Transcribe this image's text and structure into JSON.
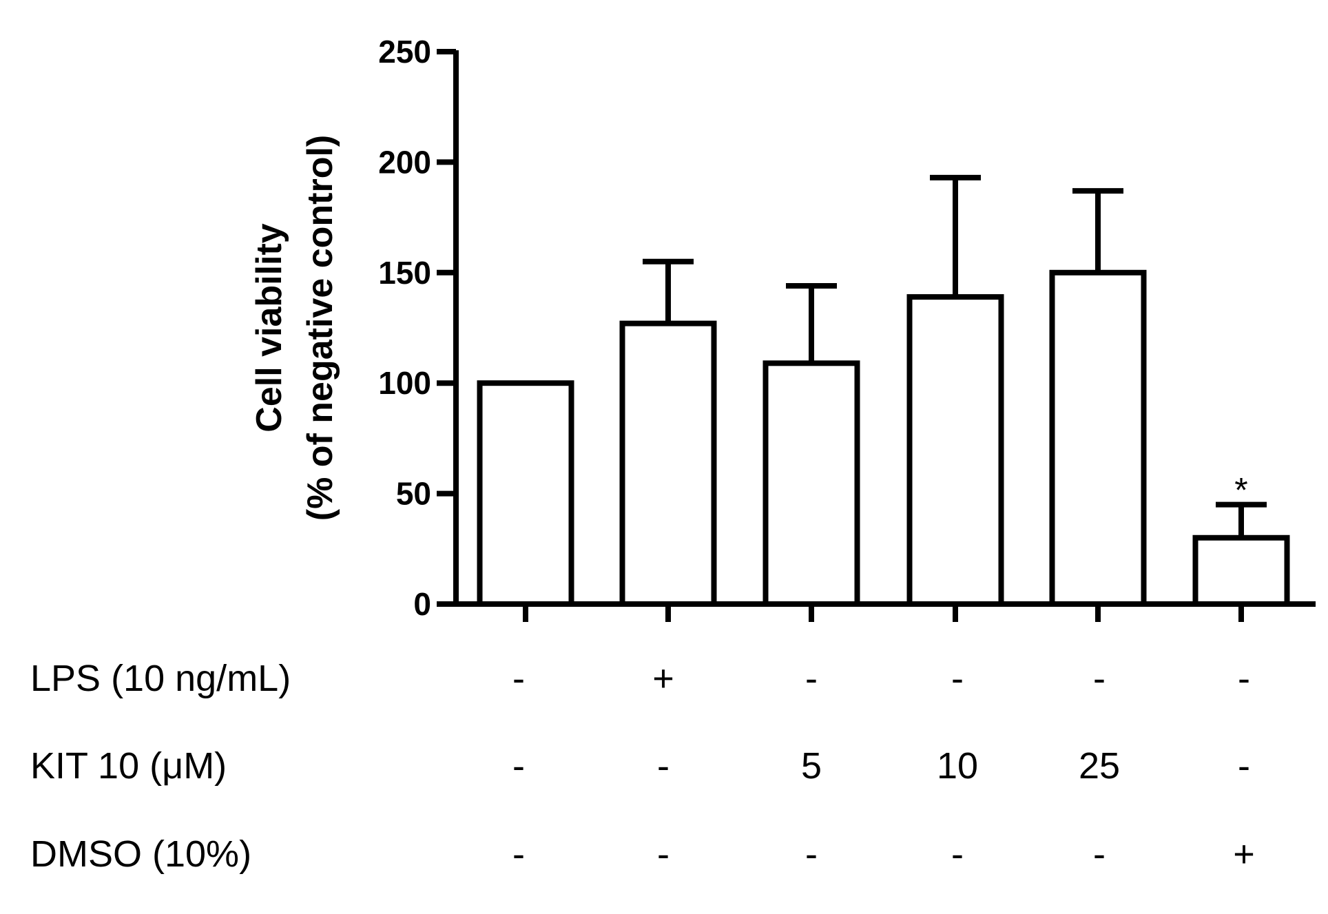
{
  "chart_data": {
    "type": "bar",
    "title": "",
    "xlabel": "",
    "ylabel_line1": "Cell viability",
    "ylabel_line2": "(% of negative control)",
    "ylim": [
      0,
      250
    ],
    "yticks": [
      0,
      50,
      100,
      150,
      200,
      250
    ],
    "ytick_labels": [
      "0",
      "50",
      "100",
      "150",
      "200",
      "250"
    ],
    "values": [
      100,
      127,
      109,
      139,
      150,
      30
    ],
    "errors": [
      0,
      28,
      35,
      54,
      37,
      15
    ],
    "annotations": [
      "",
      "",
      "",
      "",
      "",
      "*"
    ],
    "conditions": [
      {
        "label": "LPS (10 ng/mL)",
        "values": [
          "-",
          "+",
          "-",
          "-",
          "-",
          "-"
        ]
      },
      {
        "label": "KIT 10 (μM)",
        "values": [
          "-",
          "-",
          "5",
          "10",
          "25",
          "-"
        ]
      },
      {
        "label": "DMSO (10%)",
        "values": [
          "-",
          "-",
          "-",
          "-",
          "-",
          "+"
        ]
      }
    ]
  }
}
